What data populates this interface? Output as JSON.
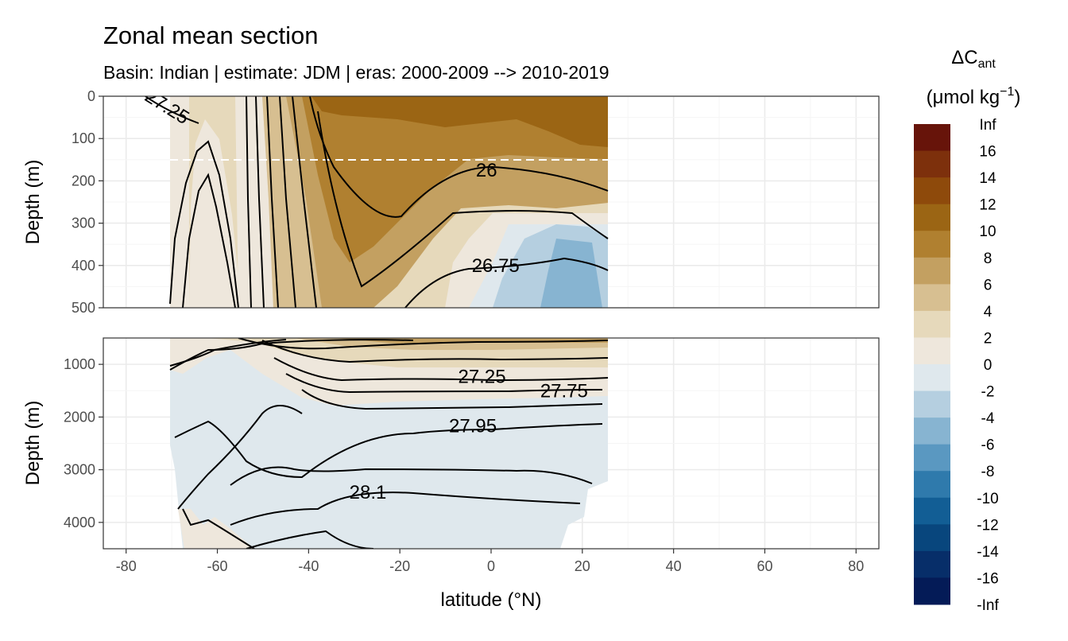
{
  "chart_data": {
    "type": "heatmap",
    "title": "Zonal mean section",
    "subtitle": "Basin: Indian | estimate: JDM  | eras: 2000-2009 --> 2010-2019",
    "xlabel": "latitude (°N)",
    "ylabel": "Depth (m)",
    "xlim": [
      -85,
      85
    ],
    "x_ticks": [
      "-80",
      "-60",
      "-40",
      "-20",
      "0",
      "20",
      "40",
      "60",
      "80"
    ],
    "panels": [
      {
        "name": "upper",
        "ylim": [
          0,
          500
        ],
        "y_ticks": [
          "0",
          "100",
          "200",
          "300",
          "400",
          "500"
        ],
        "mixed_layer_reference_depth": 150,
        "contour_labels": [
          {
            "text": "27.25",
            "lat": -71,
            "depth": 25,
            "angle": 32
          },
          {
            "text": "26",
            "lat": -1,
            "depth": 175,
            "angle": 0
          },
          {
            "text": "26.75",
            "lat": 1,
            "depth": 400,
            "angle": 0
          }
        ]
      },
      {
        "name": "lower",
        "ylim": [
          500,
          4500
        ],
        "y_ticks": [
          "1000",
          "2000",
          "3000",
          "4000"
        ],
        "contour_labels": [
          {
            "text": "27.25",
            "lat": -2,
            "depth": 1230,
            "angle": 0
          },
          {
            "text": "27.75",
            "lat": 16,
            "depth": 1500,
            "angle": 0
          },
          {
            "text": "27.95",
            "lat": -4,
            "depth": 2170,
            "angle": 0
          },
          {
            "text": "28.1",
            "lat": -27,
            "depth": 3430,
            "angle": 0
          }
        ]
      }
    ],
    "legend": {
      "title": "ΔC",
      "title_subscript": "ant",
      "unit": "(μmol kg",
      "unit_superscript": "−1",
      "unit_close": ")",
      "position": "right",
      "labels": [
        "Inf",
        "16",
        "14",
        "12",
        "10",
        "8",
        "6",
        "4",
        "2",
        "0",
        "-2",
        "-4",
        "-6",
        "-8",
        "-10",
        "-12",
        "-14",
        "-16",
        "-Inf"
      ],
      "colors": [
        "#67140a",
        "#7d300c",
        "#8e4a0b",
        "#9b6514",
        "#b08030",
        "#c3a061",
        "#d7bf91",
        "#e6d9bb",
        "#eee7dc",
        "#dfe8ed",
        "#b5cfe0",
        "#87b4d1",
        "#5a98c1",
        "#2f7aac",
        "#125e95",
        "#08467d",
        "#072e69",
        "#041b57"
      ]
    },
    "colors": {
      "bg": "#ffffff",
      "grid_major": "#ebebeb",
      "grid_minor": "#f5f5f5",
      "frame": "#333333",
      "contour": "#000000"
    }
  }
}
